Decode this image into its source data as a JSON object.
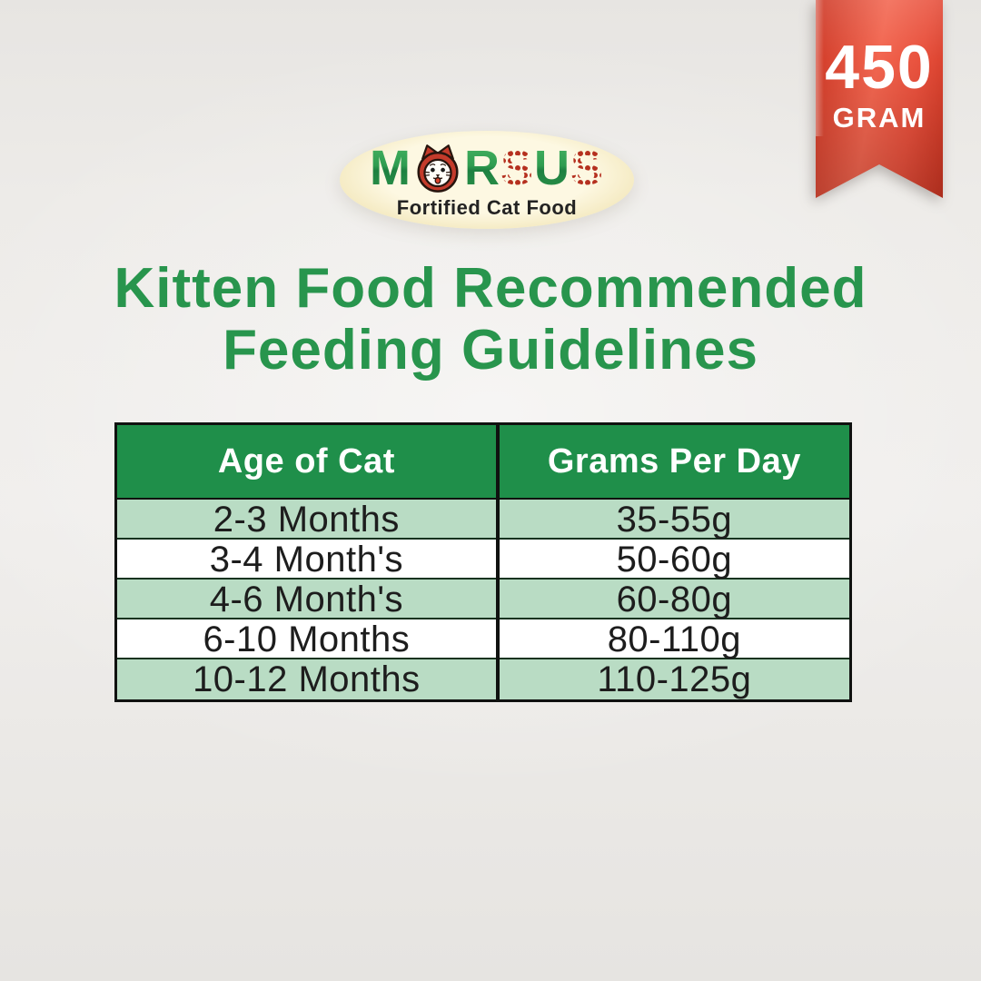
{
  "badge": {
    "value": "450",
    "unit": "GRAM"
  },
  "logo": {
    "brand": "MORSUS",
    "letters": [
      {
        "char": "M",
        "style": "green"
      },
      {
        "char": "O",
        "style": "cat-face"
      },
      {
        "char": "R",
        "style": "green"
      },
      {
        "char": "S",
        "style": "paws"
      },
      {
        "char": "U",
        "style": "green"
      },
      {
        "char": "S",
        "style": "paws"
      }
    ],
    "tagline": "Fortified Cat Food"
  },
  "heading": {
    "line1": "Kitten Food Recommended",
    "line2": "Feeding Guidelines"
  },
  "chart_data": {
    "type": "table",
    "title": "Kitten Food Recommended Feeding Guidelines",
    "columns": [
      "Age of Cat",
      "Grams Per Day"
    ],
    "rows": [
      [
        "2-3 Months",
        "35-55g"
      ],
      [
        "3-4 Month's",
        "50-60g"
      ],
      [
        "4-6 Month's",
        "60-80g"
      ],
      [
        "6-10 Months",
        "80-110g"
      ],
      [
        "10-12 Months",
        "110-125g"
      ]
    ],
    "layout": {
      "alternating_row_colors": true,
      "header_style": "green-white-text"
    }
  },
  "colors": {
    "heading_green": "#28954d",
    "table_header_green": "#1f8f4a",
    "row_light_green": "#b9dcc4",
    "row_white": "#ffffff",
    "table_border": "#101210",
    "row_divider": "#16331f",
    "ribbon_red_light": "#f2654f",
    "ribbon_red_dark": "#cc3522",
    "logo_cream": "#fdf8e2",
    "logo_gold": "#d9c28d",
    "brand_green": "#2b9a4f",
    "brand_red": "#b5301f",
    "tagline_dark": "#232323",
    "cell_text": "#1d1d1d"
  }
}
